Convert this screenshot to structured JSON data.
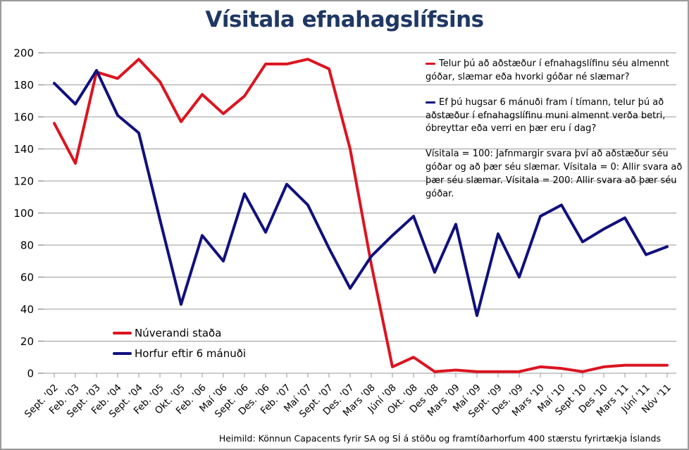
{
  "title": "Vísitala efnahagslífsins",
  "colors": {
    "title": "#1f3864",
    "grid": "#9a9a9a",
    "axis_text": "#000000",
    "red_series": "#dc1420",
    "blue_series": "#10107d"
  },
  "annotations": {
    "q1": "Telur þú að aðstæður í efnahagslífinu séu almennt góðar, slæmar eða hvorki góðar né slæmar?",
    "q2": "Ef þú hugsar 6 mánuði fram í tímann, telur þú að aðstæður í efnahagslífinu muni almennt verða betri, óbreyttar eða verri en þær eru í dag?",
    "note": "Vísitala = 100: Jafnmargir svara því að aðstæður séu góðar og að þær séu slæmar. Vísitala = 0: Allir svara að þær séu slæmar. Vísitala = 200: Allir svara að þær séu góðar."
  },
  "footer": "Heimild: Könnun Capacents fyrir SA og SÍ á stöðu og framtíðarhorfum 400 stærstu fyrirtækja Íslands",
  "chart_data": {
    "type": "line",
    "title": "Vísitala efnahagslífsins",
    "xlabel": "",
    "ylabel": "",
    "ylim": [
      0,
      200
    ],
    "yticks": [
      0,
      20,
      40,
      60,
      80,
      100,
      120,
      140,
      160,
      180,
      200
    ],
    "grid": "horizontal",
    "legend_position": "inside-bottom-left",
    "categories": [
      "Sept. '02",
      "Feb. '03",
      "Sept. '03",
      "Feb. '04",
      "Sept. '04",
      "Feb. '05",
      "Okt. '05",
      "Feb. '06",
      "Maí '06",
      "Sept. '06",
      "Des. '06",
      "Feb. '07",
      "Maí '07",
      "Sept. '07",
      "Des. '07",
      "Mars '08",
      "Júní '08",
      "Okt. '08",
      "Des '08",
      "Mars '09",
      "Maí '09",
      "Sept. '09",
      "Des. '09",
      "Mars '10",
      "Maí '10",
      "Sept '10",
      "Des '10",
      "Mars '11",
      "Júní '11",
      "Nóv '11"
    ],
    "series": [
      {
        "id": "nuverandi-stada",
        "name": "Núverandi staða",
        "color": "#dc1420",
        "values": [
          156,
          131,
          188,
          184,
          196,
          182,
          157,
          174,
          162,
          173,
          193,
          193,
          196,
          190,
          140,
          68,
          4,
          10,
          1,
          2,
          1,
          1,
          1,
          4,
          3,
          1,
          4,
          5,
          5,
          5
        ]
      },
      {
        "id": "horfur-eftir-6-manudi",
        "name": "Horfur eftir 6 mánuði",
        "color": "#10107d",
        "values": [
          181,
          168,
          189,
          161,
          150,
          96,
          43,
          86,
          70,
          112,
          88,
          118,
          105,
          78,
          53,
          73,
          86,
          98,
          63,
          93,
          36,
          87,
          60,
          98,
          105,
          82,
          90,
          97,
          74,
          79
        ]
      }
    ]
  }
}
